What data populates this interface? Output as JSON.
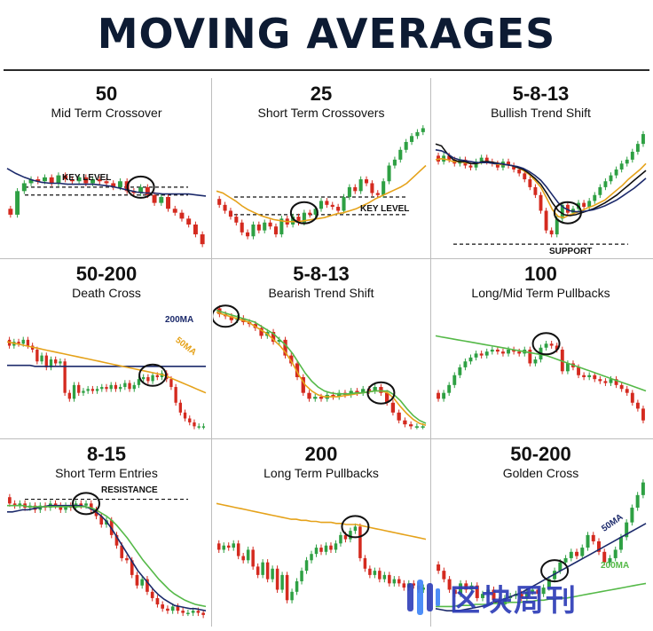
{
  "title": "MOVING AVERAGES",
  "colors": {
    "up": "#2ea043",
    "down": "#d42a1f",
    "ma_navy": "#1c2a6b",
    "ma_gold": "#e5a21a",
    "ma_green": "#55b948",
    "ma_black": "#111111",
    "title": "#0d1b33",
    "watermark": "#2e3db8"
  },
  "watermark": {
    "logo_icon": "blockchain-weekly-logo-icon",
    "text": "区块周刊"
  },
  "chart_data": [
    {
      "type": "candlestick",
      "title": "50",
      "subtitle": "Mid Term Crossover",
      "annotations": [
        "KEY LEVEL"
      ],
      "closes": [
        38,
        62,
        70,
        74,
        72,
        76,
        70,
        78,
        74,
        72,
        76,
        70,
        74,
        72,
        70,
        66,
        72,
        62,
        60,
        66,
        58,
        50,
        56,
        44,
        40,
        34,
        28,
        18,
        8
      ],
      "moving_averages": [
        {
          "color": "ma_navy",
          "values": [
            85,
            80,
            76,
            73,
            71,
            70,
            70,
            69,
            69,
            69,
            69,
            68,
            67,
            65,
            63,
            61,
            60,
            60,
            59,
            59,
            59,
            59,
            58,
            57
          ]
        }
      ],
      "circle_index": 19,
      "key_levels": [
        {
          "value": 66,
          "dashed": true
        },
        {
          "value": 58,
          "dashed": true
        }
      ]
    },
    {
      "type": "candlestick",
      "title": "25",
      "subtitle": "Short Term Crossovers",
      "annotations": [
        "KEY LEVEL"
      ],
      "closes": [
        48,
        42,
        36,
        30,
        20,
        16,
        28,
        22,
        30,
        26,
        18,
        34,
        28,
        36,
        30,
        40,
        38,
        44,
        52,
        48,
        46,
        42,
        56,
        66,
        62,
        74,
        70,
        60,
        58,
        72,
        88,
        94,
        104,
        112,
        118,
        122,
        126
      ],
      "moving_averages": [
        {
          "color": "ma_gold",
          "values": [
            62,
            60,
            56,
            52,
            47,
            43,
            40,
            37,
            35,
            33,
            32,
            31,
            31,
            31,
            32,
            33,
            34,
            35,
            37,
            39,
            40,
            42,
            44,
            47,
            50,
            54,
            57,
            60,
            63,
            66,
            70,
            76,
            82,
            88
          ]
        }
      ],
      "circle_index": 15,
      "key_levels": [
        {
          "value": 38,
          "dashed": true
        },
        {
          "value": 56,
          "dashed": true
        }
      ]
    },
    {
      "type": "candlestick",
      "title": "5-8-13",
      "subtitle": "Bullish Trend Shift",
      "annotations": [
        "SUPPORT"
      ],
      "closes": [
        92,
        98,
        94,
        90,
        94,
        88,
        86,
        92,
        96,
        92,
        90,
        86,
        92,
        88,
        84,
        80,
        74,
        66,
        58,
        42,
        22,
        18,
        34,
        48,
        40,
        44,
        50,
        46,
        52,
        58,
        66,
        72,
        78,
        84,
        90,
        94,
        102,
        110,
        120
      ],
      "moving_averages": [
        {
          "color": "ma_gold",
          "values": [
            94,
            95,
            94,
            92,
            92,
            91,
            90,
            90,
            91,
            91,
            90,
            89,
            89,
            88,
            86,
            83,
            79,
            73,
            66,
            55,
            43,
            36,
            35,
            38,
            40,
            42,
            45,
            47,
            50,
            53,
            58,
            63,
            68,
            74,
            79,
            84,
            90
          ]
        },
        {
          "color": "ma_black",
          "values": [
            110,
            108,
            100,
            94,
            92,
            92,
            90,
            90,
            92,
            92,
            91,
            90,
            89,
            88,
            86,
            84,
            80,
            75,
            69,
            60,
            50,
            42,
            38,
            37,
            38,
            40,
            42,
            44,
            47,
            50,
            54,
            58,
            63,
            68,
            73,
            78,
            83
          ]
        },
        {
          "color": "ma_navy",
          "values": [
            104,
            103,
            100,
            96,
            94,
            93,
            92,
            91,
            91,
            91,
            90,
            90,
            89,
            88,
            87,
            85,
            82,
            78,
            73,
            66,
            58,
            50,
            45,
            42,
            41,
            41,
            42,
            43,
            45,
            47,
            50,
            53,
            57,
            61,
            65,
            70,
            75
          ]
        }
      ],
      "circle_index": 24,
      "key_levels": [
        {
          "value": 8,
          "dashed": true
        }
      ]
    },
    {
      "type": "candlestick",
      "title": "50-200",
      "subtitle": "Death Cross",
      "annotations": [
        "200MA",
        "50MA"
      ],
      "closes": [
        88,
        92,
        90,
        94,
        88,
        84,
        72,
        78,
        66,
        74,
        70,
        72,
        40,
        34,
        48,
        40,
        42,
        44,
        42,
        44,
        46,
        44,
        48,
        44,
        46,
        50,
        44,
        48,
        54,
        56,
        52,
        58,
        56,
        60,
        54,
        46,
        30,
        20,
        14,
        10,
        6,
        6,
        6
      ],
      "moving_averages": [
        {
          "color": "ma_navy",
          "values": [
            68,
            68,
            68,
            68,
            68,
            68,
            67,
            67,
            67,
            67,
            67,
            67,
            67,
            67,
            67,
            67,
            67,
            67,
            67,
            67,
            67,
            67,
            67,
            67,
            67,
            67,
            67,
            67,
            67,
            67,
            67,
            67,
            67,
            67,
            67,
            67,
            67,
            67,
            67,
            67,
            67,
            67,
            67,
            67
          ]
        },
        {
          "color": "ma_gold",
          "values": [
            92,
            91,
            90,
            89,
            88,
            87,
            86,
            85,
            84,
            83,
            82,
            81,
            80,
            79,
            78,
            77,
            76,
            75,
            74,
            73,
            72,
            71,
            70,
            69,
            68,
            67,
            66,
            65,
            64,
            63,
            62,
            61,
            60,
            59,
            58,
            56,
            54,
            52,
            50,
            48,
            46,
            44,
            42,
            40
          ]
        }
      ],
      "circle_index": 31,
      "key_levels": []
    },
    {
      "type": "candlestick",
      "title": "5-8-13",
      "subtitle": "Bearish Trend Shift",
      "annotations": [],
      "closes": [
        120,
        118,
        114,
        116,
        112,
        110,
        106,
        98,
        102,
        92,
        94,
        78,
        70,
        56,
        40,
        34,
        36,
        34,
        38,
        36,
        40,
        38,
        42,
        40,
        44,
        42,
        46,
        40,
        30,
        20,
        12,
        8,
        6,
        6,
        6
      ],
      "moving_averages": [
        {
          "color": "ma_gold",
          "values": [
            122,
            120,
            118,
            116,
            114,
            112,
            108,
            104,
            100,
            94,
            88,
            80,
            70,
            58,
            48,
            42,
            38,
            36,
            36,
            36,
            37,
            38,
            39,
            40,
            41,
            42,
            42,
            40,
            34,
            26,
            19,
            13,
            9,
            7
          ]
        },
        {
          "color": "ma_green",
          "values": [
            124,
            122,
            120,
            118,
            116,
            114,
            112,
            108,
            104,
            100,
            94,
            88,
            80,
            70,
            60,
            52,
            46,
            42,
            40,
            39,
            39,
            39,
            40,
            40,
            41,
            42,
            42,
            42,
            38,
            32,
            24,
            17,
            12,
            9
          ]
        }
      ],
      "circle_index": 1,
      "circle_index_2": 27,
      "key_levels": []
    },
    {
      "type": "candlestick",
      "title": "100",
      "subtitle": "Long/Mid Term Pullbacks",
      "annotations": [],
      "closes": [
        34,
        40,
        48,
        58,
        66,
        72,
        76,
        80,
        78,
        82,
        84,
        82,
        80,
        84,
        82,
        80,
        84,
        70,
        74,
        86,
        90,
        88,
        84,
        62,
        70,
        66,
        58,
        56,
        58,
        54,
        52,
        50,
        54,
        48,
        44,
        40,
        30,
        24,
        12
      ],
      "moving_averages": [
        {
          "color": "ma_green",
          "values": [
            98,
            97,
            96,
            95,
            94,
            93,
            92,
            91,
            90,
            89,
            88,
            87,
            86,
            85,
            84,
            83,
            82,
            81,
            80,
            79,
            78,
            76,
            74,
            72,
            70,
            68,
            66,
            64,
            62,
            60,
            58,
            56,
            54,
            52,
            50,
            48,
            46,
            44,
            42
          ]
        }
      ],
      "circle_index": 20,
      "key_levels": []
    },
    {
      "type": "candlestick",
      "title": "8-15",
      "subtitle": "Short Term Entries",
      "annotations": [
        "RESISTANCE"
      ],
      "closes": [
        112,
        110,
        112,
        108,
        110,
        106,
        110,
        108,
        112,
        110,
        106,
        110,
        108,
        112,
        110,
        112,
        106,
        100,
        92,
        96,
        82,
        72,
        60,
        58,
        44,
        34,
        40,
        28,
        22,
        16,
        12,
        10,
        14,
        10,
        8,
        8,
        10,
        8,
        6
      ],
      "moving_averages": [
        {
          "color": "ma_navy",
          "values": [
            104,
            104,
            105,
            106,
            106,
            107,
            108,
            109,
            110,
            110,
            110,
            110,
            110,
            110,
            110,
            109,
            107,
            104,
            100,
            95,
            88,
            80,
            72,
            64,
            56,
            48,
            42,
            36,
            30,
            25,
            21,
            18,
            15,
            14,
            13,
            12,
            12,
            11,
            10
          ]
        },
        {
          "color": "ma_green",
          "values": [
            110,
            110,
            110,
            110,
            109,
            109,
            109,
            109,
            109,
            109,
            109,
            109,
            109,
            109,
            109,
            109,
            108,
            106,
            103,
            100,
            96,
            91,
            85,
            79,
            72,
            65,
            58,
            52,
            46,
            40,
            35,
            30,
            26,
            23,
            20,
            18,
            16,
            15,
            14
          ]
        }
      ],
      "circle_index": 15,
      "key_levels": [
        {
          "value": 116,
          "dashed": true
        }
      ]
    },
    {
      "type": "candlestick",
      "title": "200",
      "subtitle": "Long Term Pullbacks",
      "annotations": [],
      "closes": [
        68,
        72,
        70,
        74,
        62,
        58,
        68,
        52,
        44,
        56,
        40,
        50,
        30,
        44,
        20,
        28,
        38,
        48,
        58,
        64,
        70,
        66,
        72,
        68,
        74,
        82,
        78,
        86,
        90,
        60,
        50,
        44,
        48,
        40,
        44,
        36,
        40,
        36,
        32,
        36,
        34,
        30,
        32
      ],
      "moving_averages": [
        {
          "color": "ma_gold",
          "values": [
            112,
            111,
            110,
            109,
            108,
            107,
            106,
            105,
            104,
            103,
            102,
            101,
            100,
            99,
            98,
            97,
            97,
            96,
            96,
            95,
            95,
            94,
            94,
            94,
            93,
            93,
            92,
            92,
            92,
            91,
            90,
            89,
            88,
            87,
            86,
            85,
            84,
            83,
            82,
            81,
            80,
            79,
            78
          ]
        }
      ],
      "circle_index": 28,
      "key_levels": []
    },
    {
      "type": "candlestick",
      "title": "50-200",
      "subtitle": "Golden Cross",
      "annotations": [
        "50MA",
        "200MA"
      ],
      "closes": [
        48,
        40,
        30,
        26,
        36,
        30,
        34,
        22,
        26,
        30,
        20,
        16,
        22,
        24,
        26,
        22,
        28,
        30,
        26,
        32,
        40,
        48,
        56,
        60,
        66,
        62,
        70,
        82,
        76,
        66,
        56,
        60,
        68,
        80,
        94,
        108,
        120,
        132
      ],
      "moving_averages": [
        {
          "color": "ma_navy",
          "values": [
            12,
            11,
            10,
            10,
            10,
            11,
            12,
            13,
            14,
            15,
            17,
            19,
            21,
            23,
            25,
            27,
            30,
            33,
            36,
            39,
            42,
            45,
            48,
            51,
            54,
            57,
            60,
            63,
            66,
            69,
            72,
            75,
            78,
            81,
            84,
            87,
            90,
            93
          ]
        },
        {
          "color": "ma_green",
          "values": [
            14,
            14,
            14,
            14,
            15,
            15,
            15,
            16,
            16,
            16,
            17,
            17,
            17,
            18,
            18,
            18,
            19,
            19,
            20,
            20,
            21,
            21,
            22,
            22,
            23,
            24,
            25,
            26,
            27,
            28,
            29,
            30,
            31,
            32,
            33,
            34,
            35,
            36
          ]
        }
      ],
      "circle_index": 21,
      "key_levels": []
    }
  ]
}
